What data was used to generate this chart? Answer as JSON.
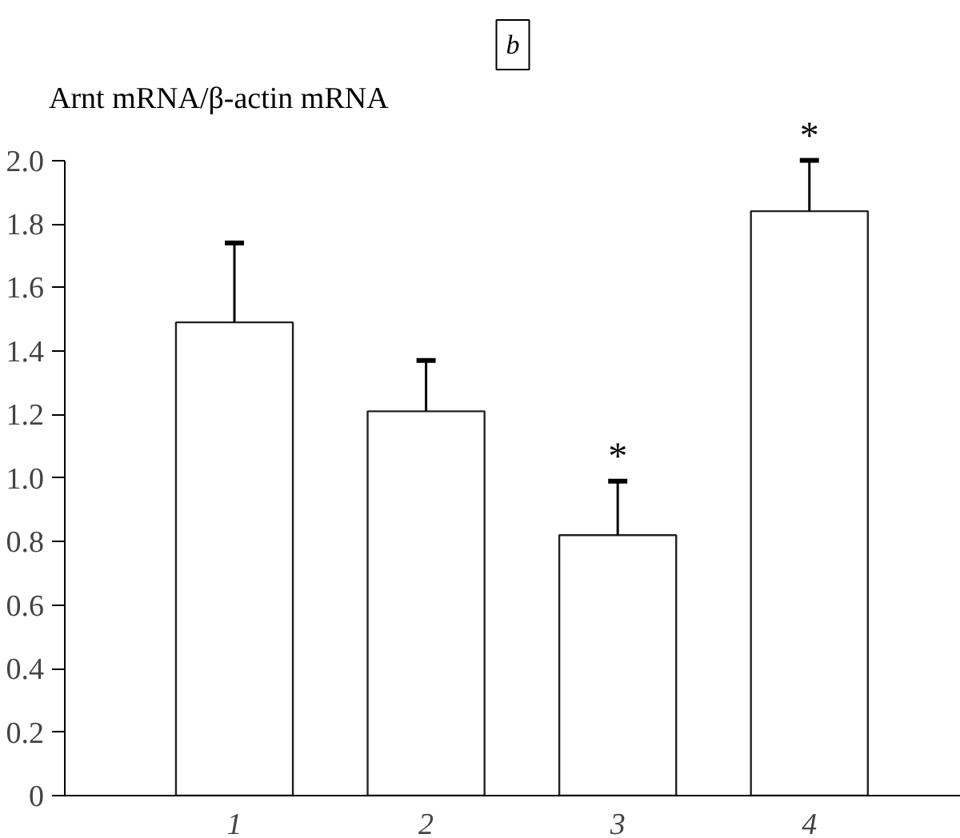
{
  "chart_data": {
    "type": "bar",
    "title": "b",
    "ylabel": "Arnt mRNA/β-actin mRNA",
    "categories": [
      "1",
      "2",
      "3",
      "4"
    ],
    "values": [
      1.49,
      1.21,
      0.82,
      1.84
    ],
    "errors": [
      [
        1.49,
        1.74
      ],
      [
        1.21,
        1.37
      ],
      [
        0.82,
        0.99
      ],
      [
        1.84,
        2.0
      ]
    ],
    "color": "#ffffff",
    "ylim": [
      0,
      2.0
    ],
    "yticks": [
      0,
      {
        "value": 0.2,
        "label": "0.2"
      },
      {
        "value": 0.4,
        "label": "0.4"
      },
      {
        "value": 0.6,
        "label": "0.6"
      },
      {
        "value": 0.8,
        "label": "0.8"
      },
      {
        "value": 1.0,
        "label": "1.0"
      },
      {
        "value": 1.2,
        "label": "1.2"
      },
      {
        "value": 1.4,
        "label": "1.4"
      },
      {
        "value": 1.6,
        "label": "1.6"
      },
      {
        "value": 1.8,
        "label": "1.8"
      },
      {
        "value": 2.0,
        "label": "2.0"
      }
    ],
    "annotations": [
      {
        "text": "*",
        "x": "3",
        "y": 0.99
      },
      {
        "text": "*",
        "x": "4",
        "y": 2.0
      }
    ],
    "grid": false
  }
}
